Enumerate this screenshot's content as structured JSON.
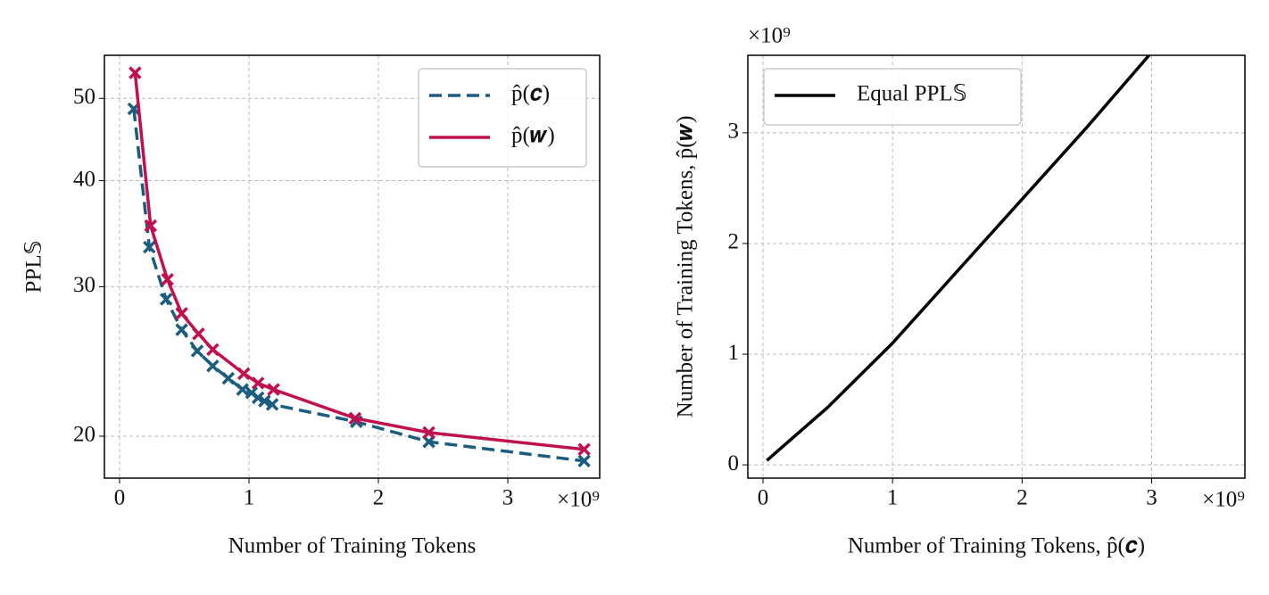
{
  "chart_data": [
    {
      "type": "line",
      "xlabel": "Number of Training Tokens",
      "ylabel": "PPL𝕊",
      "x_offset_label": "×10⁹",
      "xlim": [
        -0.117,
        3.71
      ],
      "xticks": [
        0,
        1,
        2,
        3
      ],
      "ylim": [
        17.85,
        56.2
      ],
      "yticks": [
        20,
        30,
        40,
        50
      ],
      "ylog": true,
      "grid": true,
      "legend": "upper right",
      "series": [
        {
          "name": "p̂(𝒄)",
          "color": "#1a5d7e",
          "dashed": true,
          "marker": "x",
          "x": [
            0.11,
            0.23,
            0.36,
            0.48,
            0.6,
            0.72,
            0.84,
            0.95,
            1.02,
            1.07,
            1.12,
            1.18,
            1.83,
            2.39,
            3.59
          ],
          "values": [
            48.6,
            33.4,
            29.0,
            26.7,
            25.2,
            24.2,
            23.4,
            22.7,
            22.5,
            22.2,
            22.0,
            21.8,
            20.8,
            19.7,
            18.7
          ]
        },
        {
          "name": "p̂(𝒘)",
          "color": "#c0104f",
          "dashed": false,
          "marker": "x",
          "x": [
            0.12,
            0.24,
            0.37,
            0.48,
            0.61,
            0.72,
            0.96,
            1.07,
            1.19,
            1.82,
            2.39,
            3.59
          ],
          "values": [
            53.6,
            35.4,
            30.6,
            27.9,
            26.4,
            25.3,
            23.7,
            23.1,
            22.7,
            21.0,
            20.2,
            19.3
          ]
        }
      ]
    },
    {
      "type": "line",
      "xlabel": "Number of Training Tokens, p̂(𝒄)",
      "ylabel": "Number of Training Tokens, p̂(𝒘)",
      "x_offset_label": "×10⁹",
      "y_offset_label": "×10⁹",
      "xlim": [
        -0.117,
        3.72
      ],
      "xticks": [
        0,
        1,
        2,
        3
      ],
      "ylim": [
        -0.12,
        3.7
      ],
      "yticks": [
        0,
        1,
        2,
        3
      ],
      "grid": true,
      "legend": "upper left",
      "series": [
        {
          "name": "Equal PPL𝕊",
          "color": "#000000",
          "dashed": false,
          "x": [
            0.03,
            0.5,
            1.0,
            1.5,
            2.0,
            2.5,
            2.98
          ],
          "values": [
            0.04,
            0.52,
            1.1,
            1.75,
            2.4,
            3.05,
            3.7
          ]
        }
      ]
    }
  ]
}
